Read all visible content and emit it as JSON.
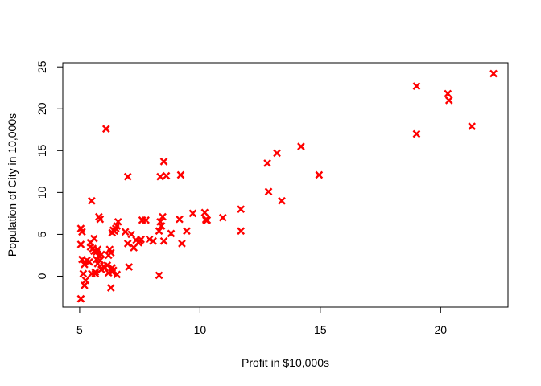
{
  "chart_data": {
    "type": "scatter",
    "title": "",
    "xlabel": "Profit in $10,000s",
    "ylabel": "Population of City in 10,000s",
    "xlim": [
      4.3,
      22.8
    ],
    "ylim": [
      -3.7,
      25.5
    ],
    "xticks": [
      5,
      10,
      15,
      20
    ],
    "yticks": [
      0,
      5,
      10,
      15,
      20,
      25
    ],
    "grid": false,
    "legend": "none",
    "marker": "x",
    "marker_color": "#ff0000",
    "series": [
      {
        "x": [
          22.2,
          19.0,
          20.3,
          20.35,
          19.0,
          21.3,
          6.1,
          14.2,
          13.2,
          12.8,
          12.85,
          13.4,
          14.95,
          11.7,
          11.7,
          8.5,
          8.35,
          8.6,
          9.2,
          7.0,
          9.7,
          10.2,
          10.25,
          10.3,
          10.25,
          10.95,
          9.15,
          9.25,
          9.45,
          8.8,
          8.45,
          8.5,
          8.4,
          8.3,
          8.35,
          8.3,
          8.05,
          7.9,
          7.75,
          7.6,
          7.55,
          7.5,
          7.45,
          7.35,
          7.25,
          7.15,
          7.05,
          7.0,
          6.9,
          6.55,
          6.6,
          6.5,
          6.45,
          6.4,
          6.35,
          6.3,
          6.25,
          6.2,
          6.15,
          6.35,
          6.3,
          6.4,
          6.05,
          6.0,
          5.9,
          5.85,
          5.8,
          5.75,
          5.7,
          5.65,
          5.6,
          5.55,
          5.5,
          5.45,
          5.4,
          5.3,
          5.25,
          5.2,
          5.15,
          5.1,
          5.05,
          5.05,
          5.1,
          5.05,
          5.5,
          5.8,
          5.85,
          5.6,
          5.65,
          5.45,
          5.75,
          5.7,
          6.35,
          6.2,
          6.55,
          5.2,
          5.9
        ],
        "y": [
          24.2,
          22.7,
          21.8,
          21.0,
          17.0,
          17.9,
          17.6,
          15.5,
          14.7,
          13.5,
          10.1,
          9.0,
          12.1,
          8.0,
          5.4,
          13.7,
          11.9,
          12.0,
          12.1,
          11.9,
          7.5,
          7.6,
          6.8,
          6.7,
          6.7,
          7.0,
          6.8,
          3.9,
          5.4,
          5.1,
          7.1,
          4.2,
          6.0,
          5.4,
          6.5,
          0.1,
          4.2,
          4.4,
          6.7,
          6.7,
          4.4,
          4.2,
          4.0,
          4.3,
          3.4,
          5.0,
          1.1,
          3.9,
          5.3,
          6.0,
          6.5,
          5.7,
          5.4,
          5.5,
          5.2,
          2.8,
          3.2,
          2.5,
          1.3,
          1.0,
          -1.4,
          0.7,
          1.0,
          1.2,
          0.8,
          1.9,
          2.4,
          3.2,
          2.9,
          0.5,
          4.5,
          3.3,
          0.3,
          4.0,
          1.7,
          1.9,
          -0.5,
          -1.1,
          0.3,
          2.0,
          -2.7,
          5.7,
          5.3,
          3.8,
          9.0,
          7.1,
          6.8,
          3.0,
          0.3,
          3.5,
          1.5,
          2.0,
          0.5,
          0.4,
          0.2,
          1.4,
          2.6
        ]
      }
    ]
  }
}
